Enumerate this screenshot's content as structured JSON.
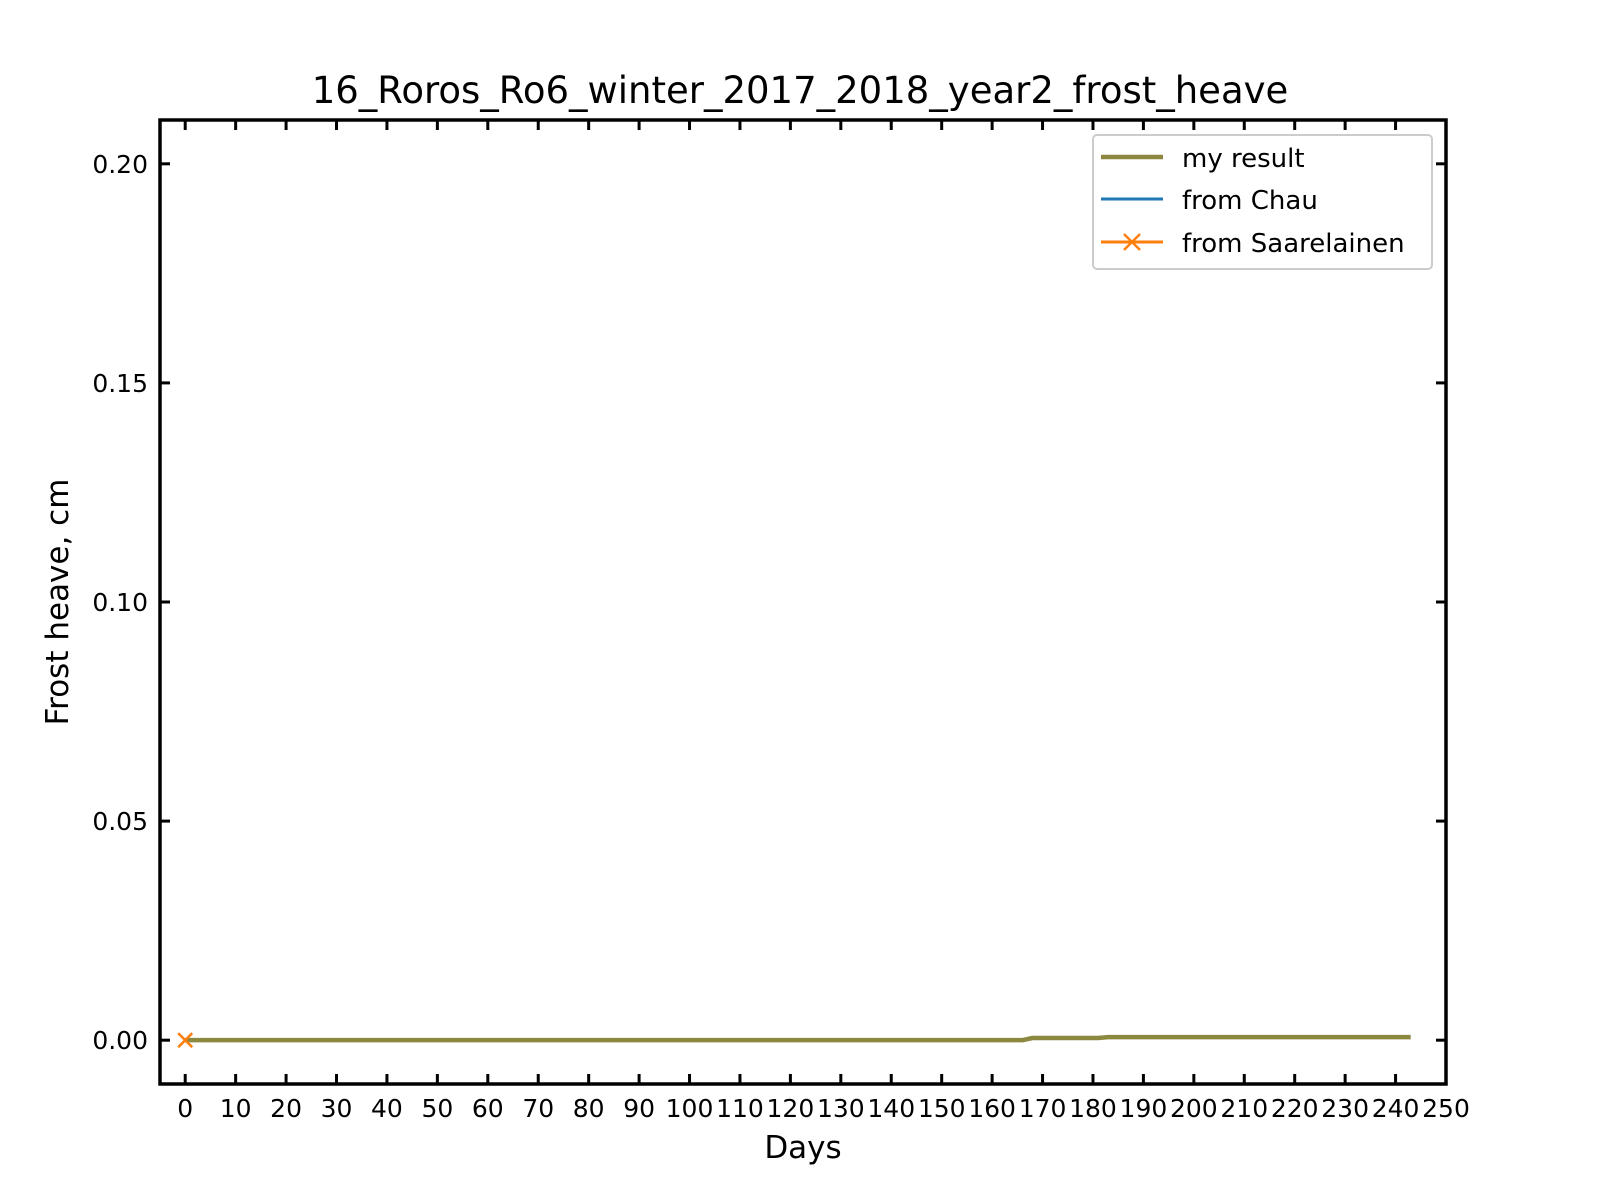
{
  "chart_data": {
    "type": "line",
    "title": "16_Roros_Ro6_winter_2017_2018_year2_frost_heave",
    "xlabel": "Days",
    "ylabel": "Frost heave, cm",
    "xlim": [
      -5,
      250
    ],
    "ylim": [
      -0.01,
      0.21
    ],
    "x_ticks": [
      0,
      10,
      20,
      30,
      40,
      50,
      60,
      70,
      80,
      90,
      100,
      110,
      120,
      130,
      140,
      150,
      160,
      170,
      180,
      190,
      200,
      210,
      220,
      230,
      240,
      250
    ],
    "y_ticks": [
      0.0,
      0.05,
      0.1,
      0.15,
      0.2
    ],
    "y_tick_labels": [
      "0.00",
      "0.05",
      "0.10",
      "0.15",
      "0.20"
    ],
    "grid": false,
    "legend_position": "top-right",
    "series": [
      {
        "name": "my result",
        "color": "#8c8840",
        "marker": "none",
        "x": [
          0,
          166,
          168,
          181,
          183,
          243
        ],
        "y": [
          0.0,
          0.0,
          0.0005,
          0.0005,
          0.0007,
          0.0007
        ]
      },
      {
        "name": "from Chau",
        "color": "#1f77b4",
        "marker": "none",
        "x": [],
        "y": []
      },
      {
        "name": "from Saarelainen",
        "color": "#ff7f0e",
        "marker": "x",
        "x": [
          0
        ],
        "y": [
          0.0
        ]
      }
    ]
  }
}
